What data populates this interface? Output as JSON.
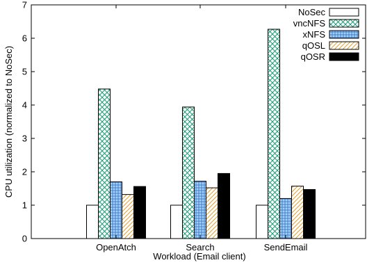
{
  "chart_data": {
    "type": "bar",
    "categories": [
      "OpenAtch",
      "Search",
      "SendEmail"
    ],
    "series": [
      {
        "name": "NoSec",
        "values": [
          1.0,
          1.0,
          1.0
        ]
      },
      {
        "name": "vncNFS",
        "values": [
          4.48,
          3.94,
          6.27
        ]
      },
      {
        "name": "xNFS",
        "values": [
          1.7,
          1.72,
          1.2
        ]
      },
      {
        "name": "qOSL",
        "values": [
          1.32,
          1.52,
          1.57
        ]
      },
      {
        "name": "qOSR",
        "values": [
          1.56,
          1.95,
          1.47
        ]
      }
    ],
    "xlabel": "Workload (Email client)",
    "ylabel": "CPU utilization (normalized to NoSec)",
    "ylim": [
      0,
      7
    ],
    "yticks": [
      "0",
      "1",
      "2",
      "3",
      "4",
      "5",
      "6",
      "7"
    ],
    "grid": false,
    "legend_position": "top-right",
    "colors": {
      "NoSec": "#ffffff",
      "vncNFS": "#1a9a74",
      "xNFS": "#4a8fd8",
      "qOSL": "#e0a030",
      "qOSR": "#000000"
    }
  }
}
